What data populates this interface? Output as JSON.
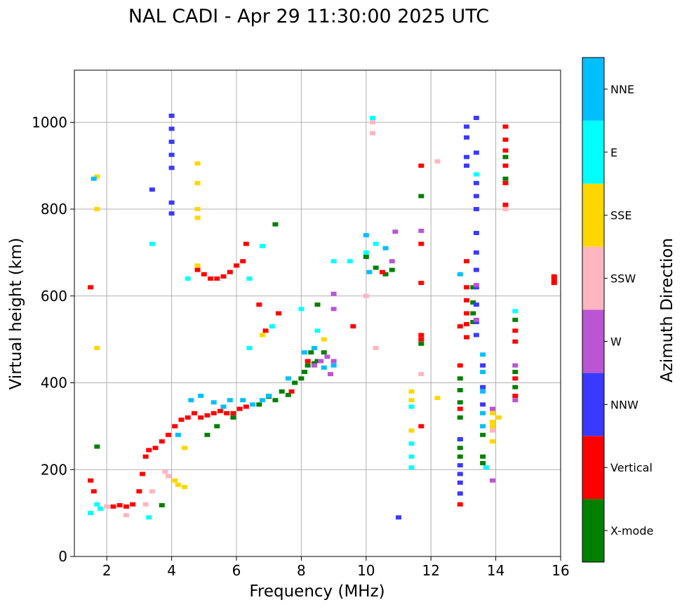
{
  "chart_data": {
    "type": "scatter",
    "title": "NAL CADI - Apr 29 11:30:00 2025 UTC",
    "xlabel": "Frequency (MHz)",
    "ylabel": "Virtual height (km)",
    "xlim": [
      1,
      16
    ],
    "ylim": [
      0,
      1120
    ],
    "xticks": [
      2,
      4,
      6,
      8,
      10,
      12,
      14,
      16
    ],
    "yticks": [
      0,
      200,
      400,
      600,
      800,
      1000
    ],
    "grid": true,
    "colorbar": {
      "label": "Azimuth Direction",
      "placement": "right",
      "categories": [
        {
          "name": "X-mode",
          "color": "#008000"
        },
        {
          "name": "Vertical",
          "color": "#ff0000"
        },
        {
          "name": "NNW",
          "color": "#3a3aff"
        },
        {
          "name": "W",
          "color": "#ba55d3"
        },
        {
          "name": "SSW",
          "color": "#ffb6c1"
        },
        {
          "name": "SSE",
          "color": "#ffd700"
        },
        {
          "name": "E",
          "color": "#00ffff"
        },
        {
          "name": "NNE",
          "color": "#00bfff"
        }
      ]
    },
    "series": [
      {
        "name": "X-mode",
        "points": [
          [
            1.7,
            253
          ],
          [
            3.7,
            118
          ],
          [
            5.1,
            280
          ],
          [
            5.4,
            300
          ],
          [
            5.9,
            320
          ],
          [
            6.7,
            350
          ],
          [
            7.0,
            368
          ],
          [
            7.2,
            360
          ],
          [
            7.4,
            380
          ],
          [
            7.6,
            372
          ],
          [
            7.8,
            400
          ],
          [
            8.0,
            410
          ],
          [
            8.1,
            425
          ],
          [
            8.2,
            440
          ],
          [
            8.3,
            470
          ],
          [
            8.4,
            445
          ],
          [
            8.5,
            450
          ],
          [
            8.7,
            470
          ],
          [
            7.2,
            765
          ],
          [
            8.5,
            580
          ],
          [
            10.0,
            690
          ],
          [
            10.3,
            665
          ],
          [
            10.6,
            650
          ],
          [
            10.8,
            660
          ],
          [
            13.3,
            585
          ],
          [
            13.3,
            560
          ],
          [
            13.3,
            540
          ],
          [
            13.3,
            620
          ],
          [
            12.9,
            410
          ],
          [
            12.9,
            383
          ],
          [
            12.9,
            355
          ],
          [
            12.9,
            320
          ],
          [
            12.9,
            270
          ],
          [
            12.9,
            250
          ],
          [
            12.9,
            230
          ],
          [
            13.6,
            280
          ],
          [
            13.6,
            230
          ],
          [
            13.6,
            215
          ],
          [
            14.3,
            920
          ],
          [
            14.3,
            870
          ],
          [
            14.6,
            545
          ],
          [
            14.6,
            425
          ],
          [
            14.6,
            390
          ],
          [
            11.7,
            830
          ],
          [
            11.7,
            490
          ]
        ]
      },
      {
        "name": "Vertical",
        "points": [
          [
            1.5,
            620
          ],
          [
            1.5,
            175
          ],
          [
            1.6,
            150
          ],
          [
            2.2,
            115
          ],
          [
            2.4,
            118
          ],
          [
            2.6,
            115
          ],
          [
            2.8,
            120
          ],
          [
            3.0,
            150
          ],
          [
            3.1,
            190
          ],
          [
            3.2,
            230
          ],
          [
            3.3,
            245
          ],
          [
            3.5,
            250
          ],
          [
            3.7,
            265
          ],
          [
            3.9,
            280
          ],
          [
            4.1,
            300
          ],
          [
            4.3,
            315
          ],
          [
            4.5,
            320
          ],
          [
            4.7,
            330
          ],
          [
            4.9,
            320
          ],
          [
            5.1,
            325
          ],
          [
            5.3,
            330
          ],
          [
            5.5,
            335
          ],
          [
            5.7,
            330
          ],
          [
            5.9,
            330
          ],
          [
            6.1,
            340
          ],
          [
            6.3,
            345
          ],
          [
            4.8,
            660
          ],
          [
            5.0,
            650
          ],
          [
            5.2,
            640
          ],
          [
            5.4,
            640
          ],
          [
            5.6,
            645
          ],
          [
            5.8,
            655
          ],
          [
            6.0,
            670
          ],
          [
            6.2,
            680
          ],
          [
            6.3,
            720
          ],
          [
            6.7,
            580
          ],
          [
            6.9,
            520
          ],
          [
            7.3,
            560
          ],
          [
            7.7,
            380
          ],
          [
            8.2,
            450
          ],
          [
            9.6,
            530
          ],
          [
            10.5,
            655
          ],
          [
            11.7,
            900
          ],
          [
            11.7,
            720
          ],
          [
            11.7,
            630
          ],
          [
            11.7,
            510
          ],
          [
            11.7,
            500
          ],
          [
            11.7,
            300
          ],
          [
            13.1,
            680
          ],
          [
            13.1,
            620
          ],
          [
            13.1,
            590
          ],
          [
            13.1,
            560
          ],
          [
            13.1,
            535
          ],
          [
            13.1,
            505
          ],
          [
            12.9,
            530
          ],
          [
            12.9,
            440
          ],
          [
            12.9,
            340
          ],
          [
            12.9,
            120
          ],
          [
            14.3,
            990
          ],
          [
            14.3,
            960
          ],
          [
            14.3,
            935
          ],
          [
            14.3,
            900
          ],
          [
            14.3,
            860
          ],
          [
            14.3,
            810
          ],
          [
            14.6,
            520
          ],
          [
            14.6,
            495
          ],
          [
            14.6,
            410
          ],
          [
            14.6,
            370
          ],
          [
            15.8,
            645
          ],
          [
            15.8,
            638
          ],
          [
            15.8,
            630
          ]
        ]
      },
      {
        "name": "NNW",
        "points": [
          [
            4.0,
            1015
          ],
          [
            4.0,
            985
          ],
          [
            4.0,
            955
          ],
          [
            4.0,
            925
          ],
          [
            4.0,
            895
          ],
          [
            4.0,
            815
          ],
          [
            4.0,
            790
          ],
          [
            3.4,
            845
          ],
          [
            11.0,
            90
          ],
          [
            13.1,
            990
          ],
          [
            13.1,
            965
          ],
          [
            13.1,
            920
          ],
          [
            13.1,
            900
          ],
          [
            13.4,
            1010
          ],
          [
            13.4,
            930
          ],
          [
            13.4,
            860
          ],
          [
            13.4,
            830
          ],
          [
            13.4,
            800
          ],
          [
            13.4,
            745
          ],
          [
            13.4,
            700
          ],
          [
            13.4,
            660
          ],
          [
            13.4,
            620
          ],
          [
            13.4,
            580
          ],
          [
            13.4,
            540
          ],
          [
            13.4,
            510
          ],
          [
            13.6,
            440
          ],
          [
            13.6,
            390
          ],
          [
            13.6,
            350
          ],
          [
            12.9,
            270
          ],
          [
            12.9,
            210
          ],
          [
            12.9,
            190
          ],
          [
            12.9,
            170
          ],
          [
            12.9,
            145
          ]
        ]
      },
      {
        "name": "W",
        "points": [
          [
            8.4,
            440
          ],
          [
            8.6,
            450
          ],
          [
            8.8,
            460
          ],
          [
            9.0,
            450
          ],
          [
            9.0,
            570
          ],
          [
            9.0,
            605
          ],
          [
            10.9,
            748
          ],
          [
            10.8,
            680
          ],
          [
            11.7,
            750
          ],
          [
            13.4,
            625
          ],
          [
            13.4,
            545
          ],
          [
            13.9,
            340
          ],
          [
            13.9,
            175
          ],
          [
            14.6,
            360
          ],
          [
            14.6,
            440
          ],
          [
            8.9,
            420
          ]
        ]
      },
      {
        "name": "SSW",
        "points": [
          [
            1.7,
            800
          ],
          [
            2.0,
            115
          ],
          [
            2.6,
            95
          ],
          [
            3.2,
            120
          ],
          [
            3.4,
            150
          ],
          [
            3.8,
            195
          ],
          [
            3.9,
            185
          ],
          [
            10.2,
            975
          ],
          [
            10.2,
            1000
          ],
          [
            11.7,
            420
          ],
          [
            12.2,
            910
          ],
          [
            13.9,
            290
          ],
          [
            14.3,
            800
          ],
          [
            10.3,
            480
          ],
          [
            10.0,
            600
          ]
        ]
      },
      {
        "name": "SSE",
        "points": [
          [
            1.7,
            875
          ],
          [
            1.7,
            800
          ],
          [
            1.7,
            480
          ],
          [
            4.1,
            175
          ],
          [
            4.2,
            165
          ],
          [
            4.4,
            160
          ],
          [
            4.8,
            905
          ],
          [
            4.8,
            860
          ],
          [
            4.8,
            800
          ],
          [
            4.8,
            780
          ],
          [
            4.8,
            670
          ],
          [
            4.4,
            250
          ],
          [
            6.8,
            510
          ],
          [
            8.7,
            500
          ],
          [
            11.4,
            380
          ],
          [
            11.4,
            360
          ],
          [
            11.4,
            290
          ],
          [
            12.2,
            365
          ],
          [
            13.9,
            330
          ],
          [
            13.9,
            310
          ],
          [
            13.9,
            300
          ],
          [
            13.9,
            265
          ],
          [
            14.1,
            320
          ]
        ]
      },
      {
        "name": "E",
        "points": [
          [
            1.5,
            100
          ],
          [
            1.7,
            120
          ],
          [
            1.8,
            110
          ],
          [
            3.4,
            720
          ],
          [
            3.3,
            90
          ],
          [
            4.5,
            640
          ],
          [
            6.8,
            715
          ],
          [
            6.4,
            640
          ],
          [
            8.0,
            570
          ],
          [
            8.5,
            520
          ],
          [
            9.0,
            680
          ],
          [
            9.5,
            680
          ],
          [
            10.0,
            700
          ],
          [
            10.2,
            1010
          ],
          [
            10.3,
            720
          ],
          [
            11.4,
            345
          ],
          [
            11.4,
            260
          ],
          [
            11.4,
            230
          ],
          [
            11.4,
            205
          ],
          [
            13.4,
            880
          ],
          [
            13.7,
            205
          ],
          [
            14.6,
            565
          ],
          [
            6.4,
            480
          ],
          [
            7.1,
            530
          ]
        ]
      },
      {
        "name": "NNE",
        "points": [
          [
            1.6,
            870
          ],
          [
            4.2,
            280
          ],
          [
            4.6,
            360
          ],
          [
            4.9,
            370
          ],
          [
            5.3,
            355
          ],
          [
            5.6,
            345
          ],
          [
            5.8,
            360
          ],
          [
            6.2,
            360
          ],
          [
            6.5,
            350
          ],
          [
            6.8,
            360
          ],
          [
            7.0,
            370
          ],
          [
            7.6,
            410
          ],
          [
            8.1,
            470
          ],
          [
            8.4,
            480
          ],
          [
            8.7,
            435
          ],
          [
            9.0,
            440
          ],
          [
            10.0,
            740
          ],
          [
            10.1,
            655
          ],
          [
            10.6,
            710
          ],
          [
            12.9,
            650
          ],
          [
            13.6,
            465
          ],
          [
            13.6,
            425
          ],
          [
            13.6,
            380
          ],
          [
            13.6,
            330
          ],
          [
            13.6,
            300
          ]
        ]
      }
    ]
  }
}
